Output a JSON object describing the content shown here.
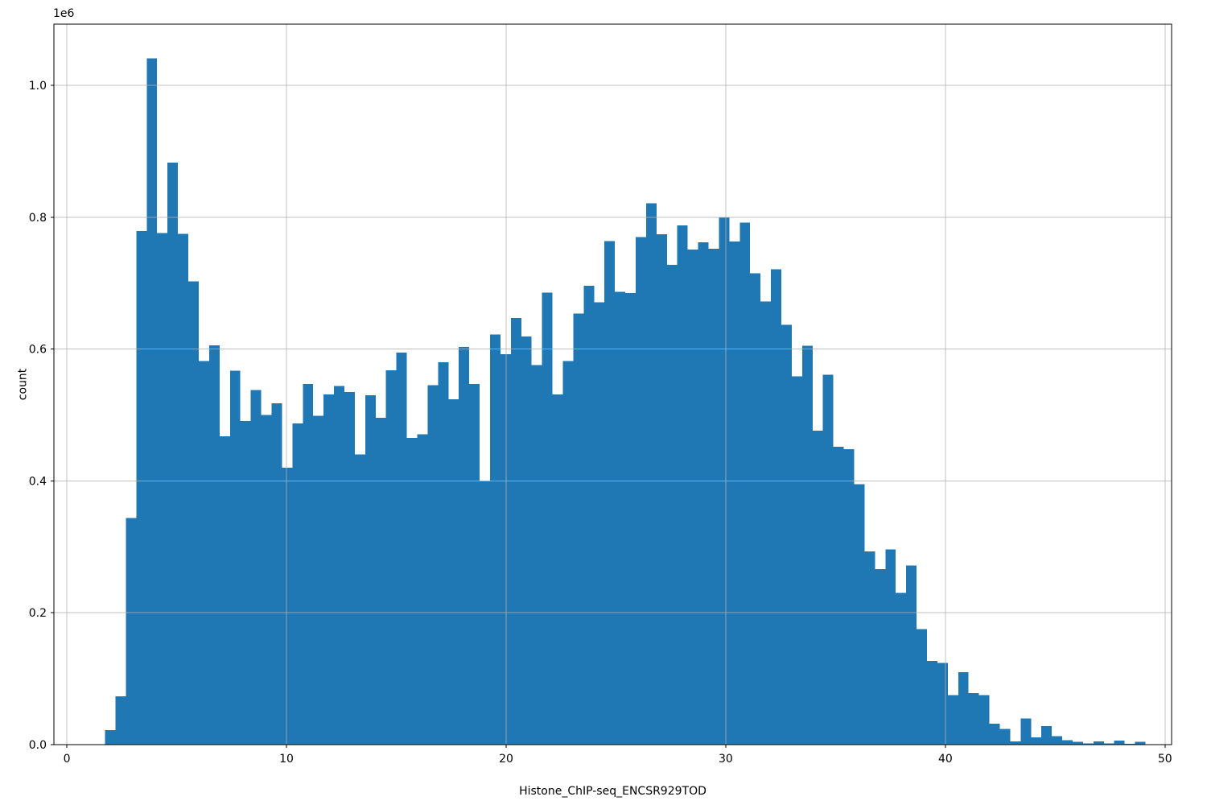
{
  "figure": {
    "background_color": "#ffffff",
    "text_color": "#000000"
  },
  "chart_data": {
    "type": "bar",
    "subtype": "histogram",
    "title": "",
    "xlabel": "Histone_ChIP-seq_ENCSR929TOD",
    "ylabel": "count",
    "y_offset_text": "1e6",
    "bar_color": "#1f77b4",
    "grid_color": "#b0b0b0",
    "spine_color": "#000000",
    "grid_on": true,
    "legend": null,
    "bin_start": 1.74,
    "bin_width": 0.4737,
    "bin_count": 100,
    "xlim": [
      -0.59,
      50.3
    ],
    "ylim_e6": [
      0,
      1.093
    ],
    "xticks": [
      0,
      10,
      20,
      30,
      40,
      50
    ],
    "yticks_e6": [
      0.0,
      0.2,
      0.4,
      0.6,
      0.8,
      1.0
    ],
    "ytick_labels": [
      "0.0",
      "0.2",
      "0.4",
      "0.6",
      "0.8",
      "1.0"
    ],
    "values_unit": "counts in millions (1e6)",
    "values_e6": [
      0.022,
      0.073,
      0.344,
      0.779,
      1.041,
      0.776,
      0.883,
      0.775,
      0.703,
      0.582,
      0.606,
      0.468,
      0.567,
      0.491,
      0.538,
      0.5,
      0.518,
      0.42,
      0.487,
      0.547,
      0.499,
      0.531,
      0.544,
      0.535,
      0.44,
      0.53,
      0.496,
      0.568,
      0.595,
      0.465,
      0.471,
      0.545,
      0.58,
      0.524,
      0.603,
      0.547,
      0.4,
      0.622,
      0.592,
      0.647,
      0.619,
      0.576,
      0.686,
      0.531,
      0.582,
      0.654,
      0.696,
      0.671,
      0.764,
      0.687,
      0.685,
      0.77,
      0.821,
      0.774,
      0.728,
      0.788,
      0.751,
      0.762,
      0.752,
      0.8,
      0.763,
      0.792,
      0.715,
      0.672,
      0.721,
      0.637,
      0.559,
      0.605,
      0.476,
      0.561,
      0.452,
      0.448,
      0.395,
      0.293,
      0.266,
      0.296,
      0.23,
      0.272,
      0.175,
      0.127,
      0.124,
      0.075,
      0.11,
      0.078,
      0.075,
      0.032,
      0.024,
      0.005,
      0.04,
      0.011,
      0.028,
      0.013,
      0.007,
      0.004,
      0.002,
      0.005,
      0.002,
      0.006,
      0.001,
      0.004
    ]
  }
}
